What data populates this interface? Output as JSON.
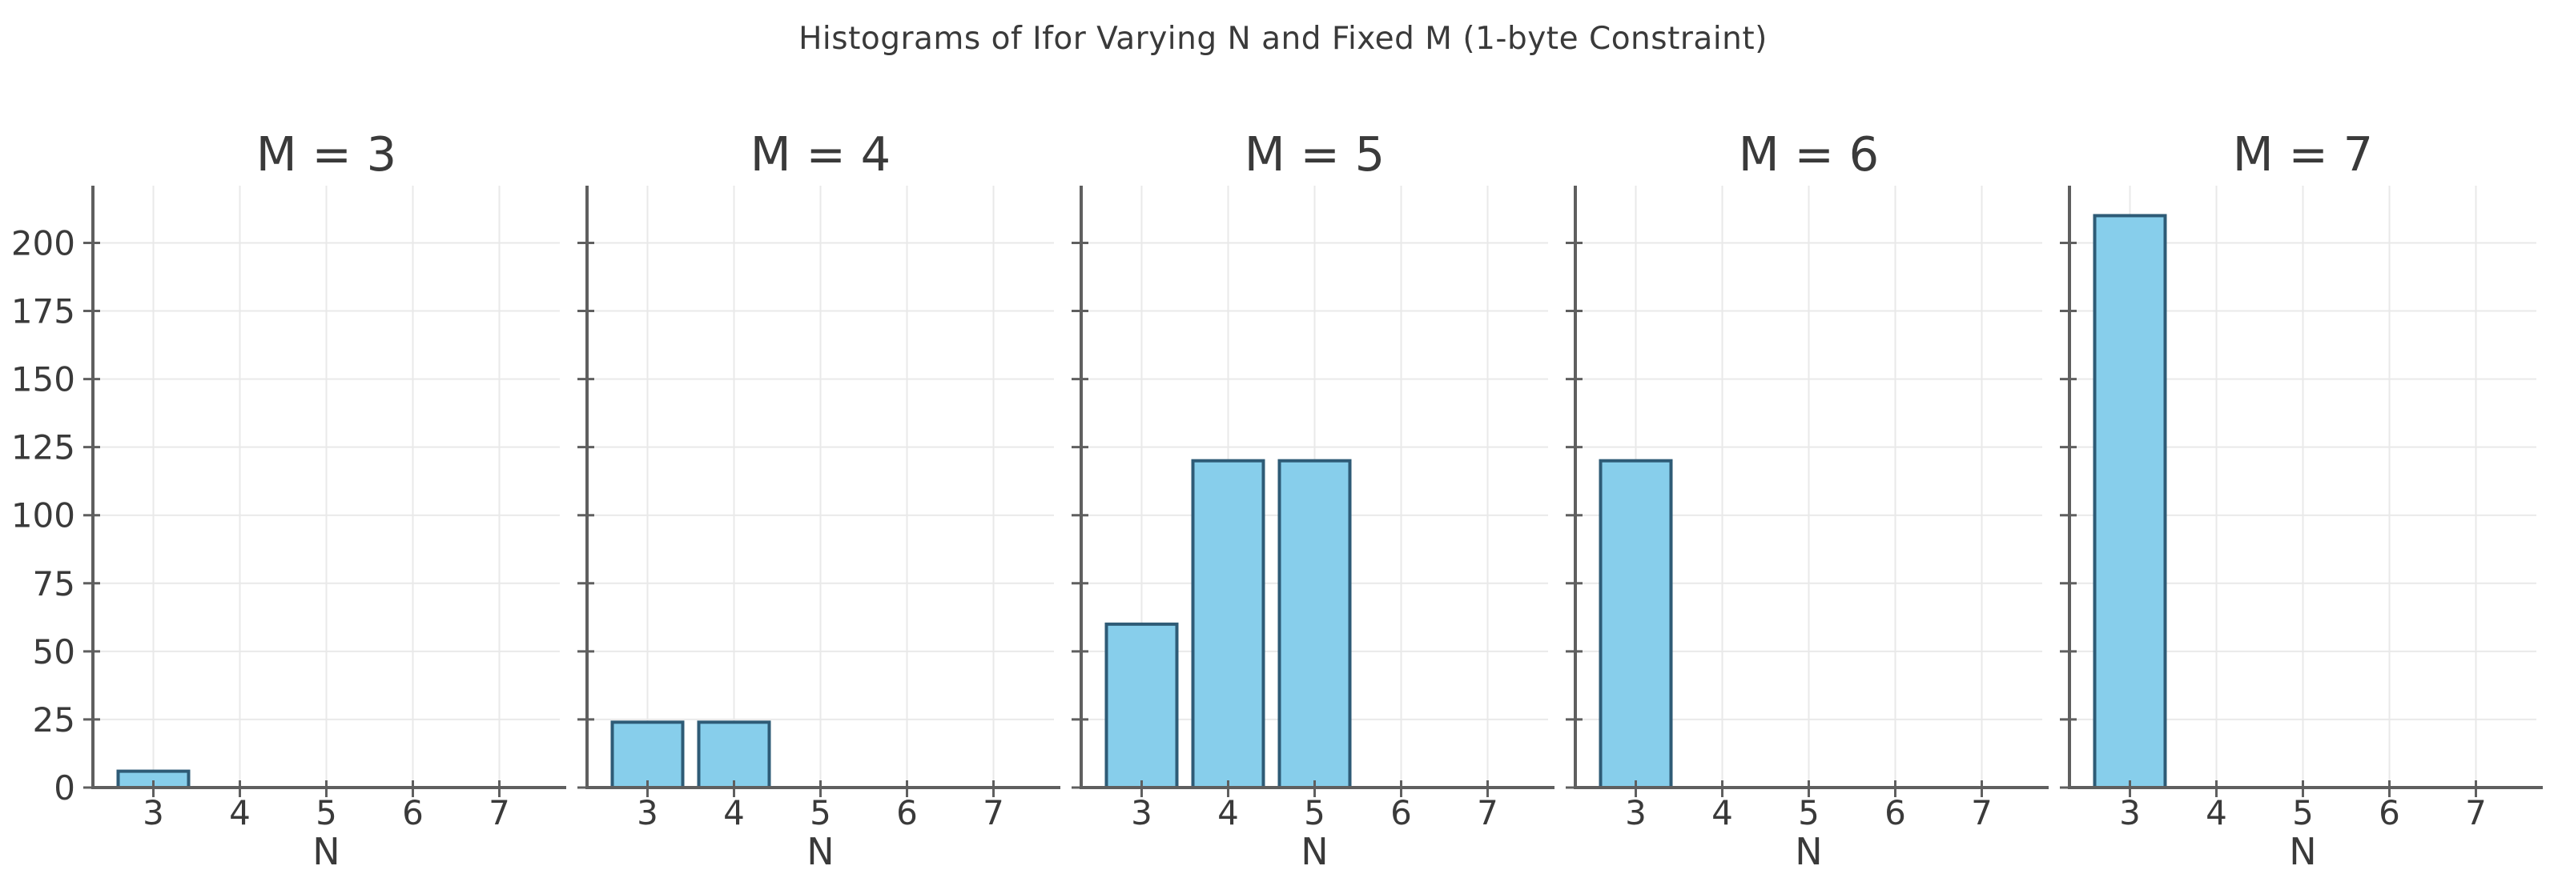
{
  "chart_data": {
    "type": "bar",
    "title": "Histograms of Ifor Varying N and Fixed M (1-byte Constraint)",
    "xlabel": "N",
    "ylabel": "",
    "categories": [
      "3",
      "4",
      "5",
      "6",
      "7"
    ],
    "yticks": [
      0,
      25,
      50,
      75,
      100,
      125,
      150,
      175,
      200
    ],
    "ylim": [
      0,
      221
    ],
    "grid": true,
    "legend_position": "none",
    "subplots": [
      {
        "title": "M = 3",
        "values": [
          6,
          0,
          0,
          0,
          0
        ]
      },
      {
        "title": "M = 4",
        "values": [
          24,
          24,
          0,
          0,
          0
        ]
      },
      {
        "title": "M = 5",
        "values": [
          60,
          120,
          120,
          0,
          0
        ]
      },
      {
        "title": "M = 6",
        "values": [
          120,
          0,
          0,
          0,
          0
        ]
      },
      {
        "title": "M = 7",
        "values": [
          210,
          0,
          0,
          0,
          0
        ]
      }
    ],
    "colors": {
      "bar_fill": "#87CEEB",
      "bar_edge": "#2e5b76",
      "gridline": "#e9e9e9",
      "spine": "#5f5f5f",
      "tick": "#5f5f5f",
      "text": "#3a3a3a"
    }
  }
}
